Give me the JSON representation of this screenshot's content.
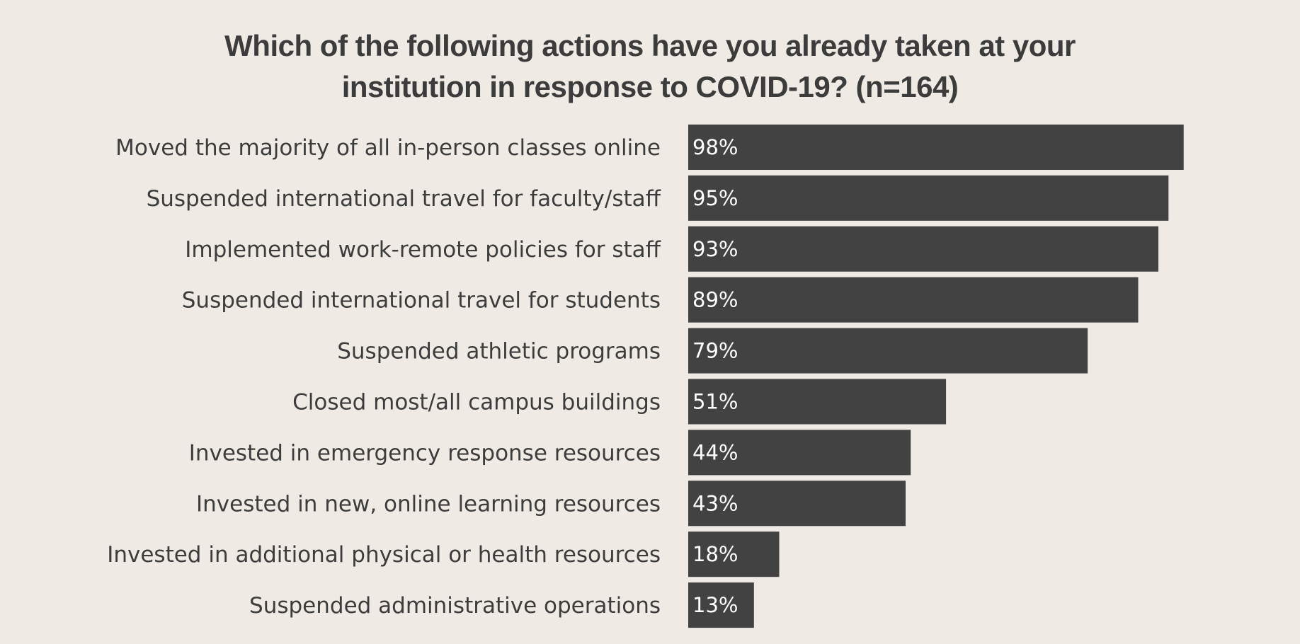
{
  "chart_data": {
    "type": "bar",
    "orientation": "horizontal",
    "title_lines": [
      "Which of the following actions have you already taken at your",
      "institution in response to COVID-19? (n=164)"
    ],
    "categories": [
      "Moved the majority of all in-person classes online",
      "Suspended international travel for faculty/staff",
      "Implemented work-remote policies for staff",
      "Suspended international travel for students",
      "Suspended athletic programs",
      "Closed most/all campus buildings",
      "Invested in emergency response resources",
      "Invested in new, online learning resources",
      "Invested in additional physical or health resources",
      "Suspended administrative operations"
    ],
    "values": [
      98,
      95,
      93,
      89,
      79,
      51,
      44,
      43,
      18,
      13
    ],
    "value_labels": [
      "98%",
      "95%",
      "93%",
      "89%",
      "79%",
      "51%",
      "44%",
      "43%",
      "18%",
      "13%"
    ],
    "unit": "%",
    "xlim": [
      0,
      100
    ],
    "grid": false,
    "legend": "none",
    "colors": {
      "bar": "#424242",
      "background": "#efebe4",
      "text": "#3c3c3c",
      "value_text": "#ffffff"
    }
  }
}
